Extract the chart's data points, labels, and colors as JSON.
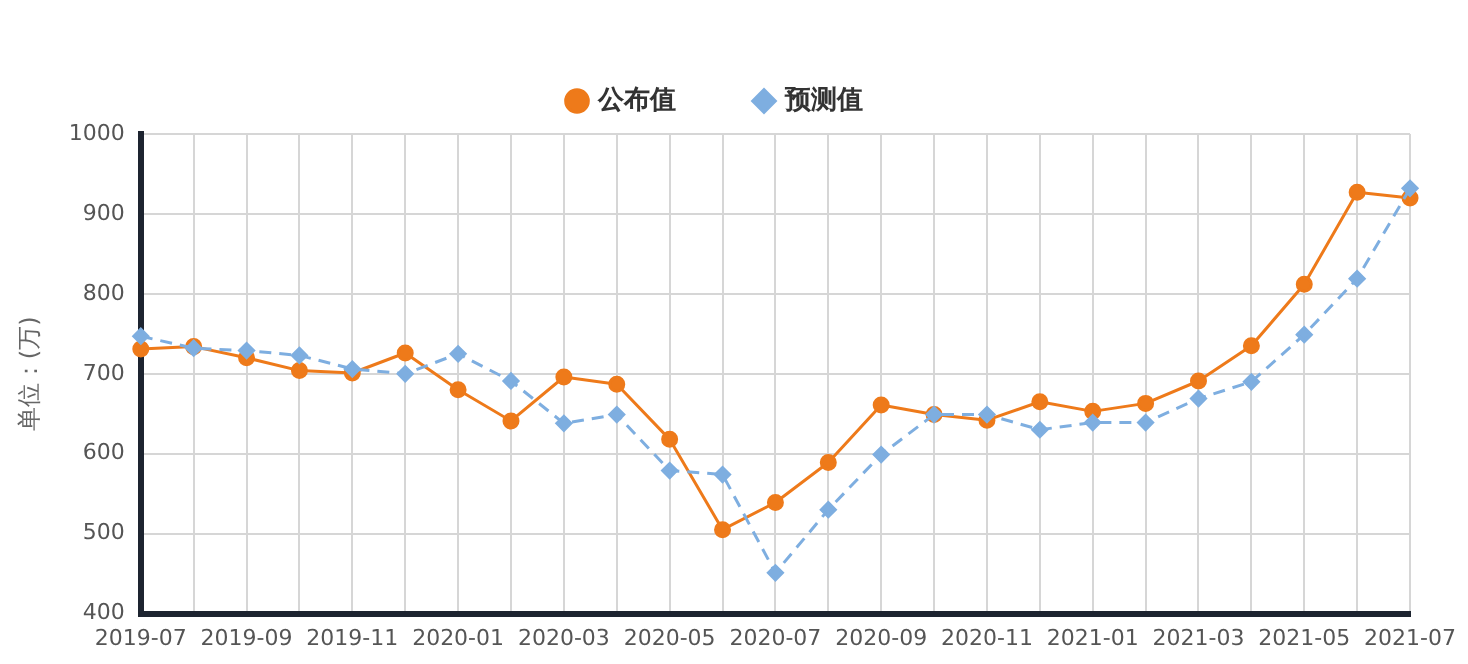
{
  "chart_data": {
    "type": "line",
    "ylabel": "单位：(万)",
    "categories": [
      "2019-07",
      null,
      "2019-09",
      null,
      "2019-11",
      null,
      "2020-01",
      null,
      "2020-03",
      null,
      "2020-05",
      null,
      "2020-07",
      null,
      "2020-09",
      null,
      "2020-11",
      null,
      "2021-01",
      null,
      "2021-03",
      null,
      "2021-05",
      null,
      "2021-07"
    ],
    "series": [
      {
        "name": "公布值",
        "color": "#ee7a1a",
        "marker": "circle",
        "line_style": "solid",
        "values": [
          731,
          734,
          720,
          704,
          701,
          726,
          680,
          641,
          696,
          687,
          618,
          505,
          539,
          589,
          661,
          649,
          642,
          665,
          653,
          663,
          691,
          735,
          812,
          927,
          920
        ]
      },
      {
        "name": "预测值",
        "color": "#7eaee0",
        "marker": "diamond",
        "line_style": "dashed",
        "values": [
          747,
          732,
          729,
          723,
          706,
          700,
          725,
          691,
          638,
          649,
          579,
          574,
          451,
          530,
          599,
          649,
          649,
          630,
          639,
          639,
          669,
          690,
          749,
          819,
          932
        ]
      }
    ],
    "ylim": [
      400,
      1000
    ],
    "yticks": [
      400,
      500,
      600,
      700,
      800,
      900,
      1000
    ],
    "grid": true,
    "legend": "top"
  }
}
